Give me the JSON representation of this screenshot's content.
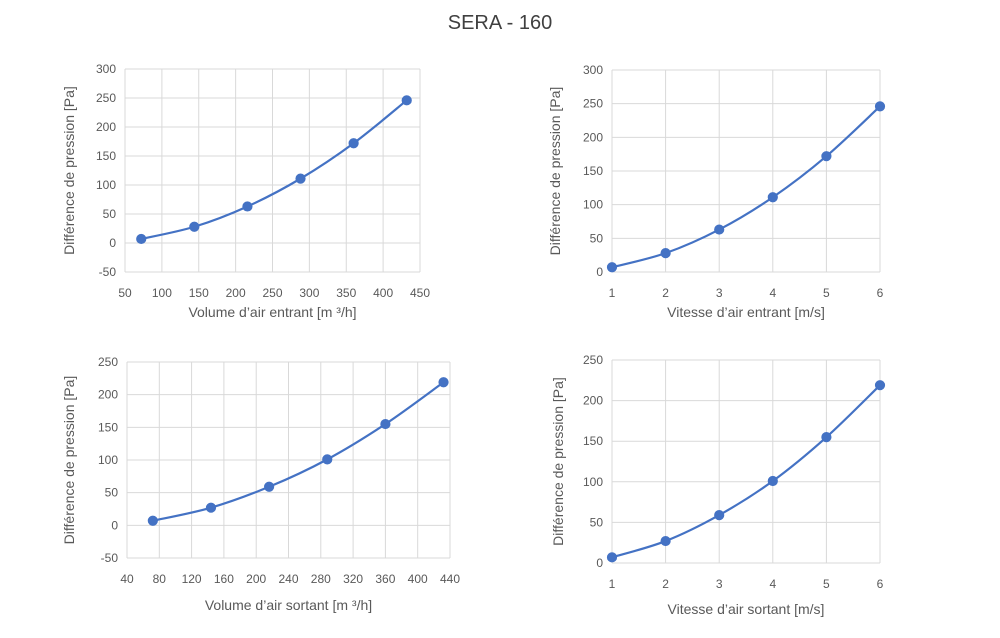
{
  "title": "SERA - 160",
  "colors": {
    "series": "#4472C4",
    "grid": "#D9D9D9",
    "text": "#595959"
  },
  "chart_data": [
    {
      "type": "scatter",
      "smooth": true,
      "xlabel": "Volume d’air entrant [m ³/h]",
      "ylabel": "Différence de pression [Pa]",
      "xlim": [
        50,
        450
      ],
      "xticks": [
        50,
        100,
        150,
        200,
        250,
        300,
        350,
        400,
        450
      ],
      "ylim": [
        -50,
        300
      ],
      "yticks": [
        -50,
        0,
        50,
        100,
        150,
        200,
        250,
        300
      ],
      "grid": true,
      "x": [
        72,
        144,
        216,
        288,
        360,
        432
      ],
      "y": [
        7,
        28,
        63,
        111,
        172,
        246
      ]
    },
    {
      "type": "scatter",
      "smooth": true,
      "xlabel": "Vitesse d’air entrant [m/s]",
      "ylabel": "Différence de pression [Pa]",
      "xlim": [
        1,
        6
      ],
      "xticks": [
        1,
        2,
        3,
        4,
        5,
        6
      ],
      "ylim": [
        0,
        300
      ],
      "yticks": [
        0,
        50,
        100,
        150,
        200,
        250,
        300
      ],
      "grid": true,
      "x": [
        1,
        2,
        3,
        4,
        5,
        6
      ],
      "y": [
        7,
        28,
        63,
        111,
        172,
        246
      ]
    },
    {
      "type": "scatter",
      "smooth": true,
      "xlabel": "Volume d’air sortant [m ³/h]",
      "ylabel": "Différence de pression [Pa]",
      "xlim": [
        40,
        440
      ],
      "xticks": [
        40,
        80,
        120,
        160,
        200,
        240,
        280,
        320,
        360,
        400,
        440
      ],
      "ylim": [
        -50,
        250
      ],
      "yticks": [
        -50,
        0,
        50,
        100,
        150,
        200,
        250
      ],
      "grid": true,
      "x": [
        72,
        144,
        216,
        288,
        360,
        432
      ],
      "y": [
        7,
        27,
        59,
        101,
        155,
        219
      ]
    },
    {
      "type": "scatter",
      "smooth": true,
      "xlabel": "Vitesse d’air sortant [m/s]",
      "ylabel": "Différence de pression [Pa]",
      "xlim": [
        1,
        6
      ],
      "xticks": [
        1,
        2,
        3,
        4,
        5,
        6
      ],
      "ylim": [
        0,
        250
      ],
      "yticks": [
        0,
        50,
        100,
        150,
        200,
        250
      ],
      "grid": true,
      "x": [
        1,
        2,
        3,
        4,
        5,
        6
      ],
      "y": [
        7,
        27,
        59,
        101,
        155,
        219
      ]
    }
  ]
}
